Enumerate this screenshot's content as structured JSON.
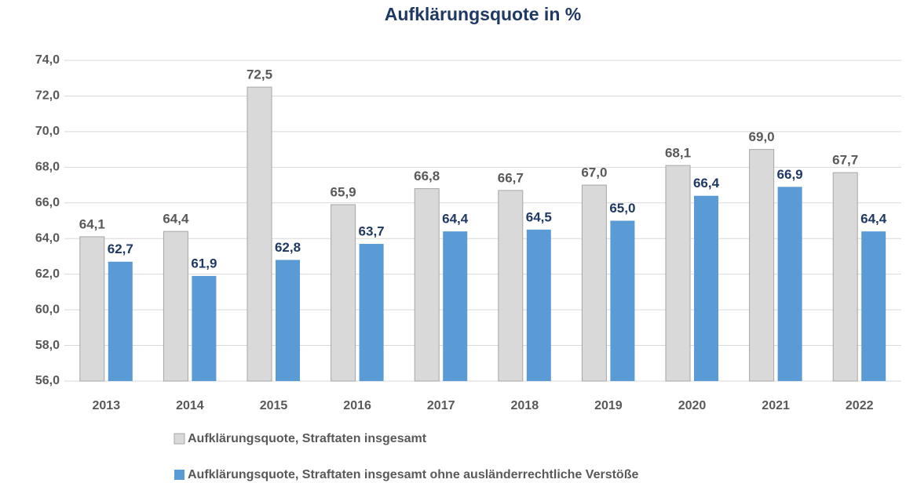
{
  "chart_data": {
    "type": "bar",
    "title": "Aufklärungsquote in %",
    "categories": [
      "2013",
      "2014",
      "2015",
      "2016",
      "2017",
      "2018",
      "2019",
      "2020",
      "2021",
      "2022"
    ],
    "series": [
      {
        "name": "Aufklärungsquote, Straftaten insgesamt",
        "color": "#d9d9d9",
        "values": [
          64.1,
          64.4,
          72.5,
          65.9,
          66.8,
          66.7,
          67.0,
          68.1,
          69.0,
          67.7
        ],
        "value_labels": [
          "64,1",
          "64,4",
          "72,5",
          "65,9",
          "66,8",
          "66,7",
          "67,0",
          "68,1",
          "69,0",
          "67,7"
        ]
      },
      {
        "name": "Aufklärungsquote, Straftaten insgesamt ohne ausländerrechtliche Verstöße",
        "color": "#5b9bd5",
        "values": [
          62.7,
          61.9,
          62.8,
          63.7,
          64.4,
          64.5,
          65.0,
          66.4,
          66.9,
          64.4
        ],
        "value_labels": [
          "62,7",
          "61,9",
          "62,8",
          "63,7",
          "64,4",
          "64,5",
          "65,0",
          "66,4",
          "66,9",
          "64,4"
        ]
      }
    ],
    "ylim": [
      56,
      74
    ],
    "yticks": [
      {
        "value": 56,
        "label": "56,0"
      },
      {
        "value": 58,
        "label": "58,0"
      },
      {
        "value": 60,
        "label": "60,0"
      },
      {
        "value": 62,
        "label": "62,0"
      },
      {
        "value": 64,
        "label": "64,0"
      },
      {
        "value": 66,
        "label": "66,0"
      },
      {
        "value": 68,
        "label": "68,0"
      },
      {
        "value": 70,
        "label": "70,0"
      },
      {
        "value": 72,
        "label": "72,0"
      },
      {
        "value": 74,
        "label": "74,0"
      }
    ],
    "grid": true
  }
}
